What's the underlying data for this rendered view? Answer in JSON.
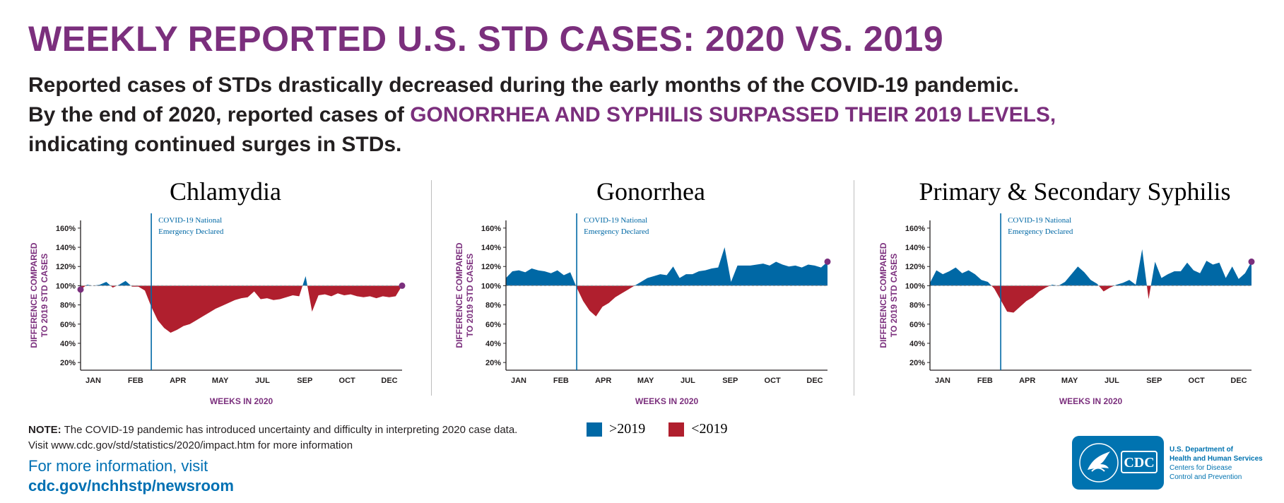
{
  "header": {
    "title": "WEEKLY REPORTED U.S. STD CASES: 2020 VS. 2019",
    "line1": "Reported cases of STDs drastically decreased during the early months of the COVID-19 pandemic.",
    "line2_pre": "By the end of 2020, reported cases of ",
    "line2_hl": "GONORRHEA AND SYPHILIS SURPASSED THEIR 2019 LEVELS,",
    "line3": "indicating continued surges in STDs."
  },
  "colors": {
    "above": "#0068a5",
    "below": "#b01f2e",
    "purple": "#7b2f7d",
    "annotation": "#0068a5"
  },
  "chart_data": [
    {
      "type": "area",
      "title": "Chlamydia",
      "ylabel": "DIFFERENCE COMPARED TO 2019 STD CASES",
      "xlabel": "WEEKS IN 2020",
      "x_ticks": [
        "JAN",
        "FEB",
        "APR",
        "MAY",
        "JUL",
        "SEP",
        "OCT",
        "DEC"
      ],
      "y_ticks": [
        "160%",
        "140%",
        "120%",
        "100%",
        "80%",
        "60%",
        "40%",
        "20%"
      ],
      "ylim": [
        12,
        168
      ],
      "baseline": 100,
      "annotation": {
        "week": 11,
        "text": [
          "COVID-19 National",
          "Emergency Declared"
        ]
      },
      "values": [
        96,
        101,
        100,
        101,
        104,
        98,
        101,
        105,
        99,
        99,
        95,
        78,
        64,
        56,
        51,
        54,
        58,
        60,
        64,
        68,
        72,
        76,
        79,
        82,
        85,
        87,
        88,
        94,
        86,
        87,
        85,
        86,
        88,
        90,
        89,
        110,
        73,
        90,
        91,
        89,
        92,
        90,
        91,
        89,
        88,
        89,
        87,
        89,
        88,
        89,
        100
      ]
    },
    {
      "type": "area",
      "title": "Gonorrhea",
      "ylabel": "DIFFERENCE COMPARED TO 2019 STD CASES",
      "xlabel": "WEEKS IN 2020",
      "x_ticks": [
        "JAN",
        "FEB",
        "APR",
        "MAY",
        "JUL",
        "SEP",
        "OCT",
        "DEC"
      ],
      "y_ticks": [
        "160%",
        "140%",
        "120%",
        "100%",
        "80%",
        "60%",
        "40%",
        "20%"
      ],
      "ylim": [
        12,
        168
      ],
      "baseline": 100,
      "annotation": {
        "week": 11,
        "text": [
          "COVID-19 National",
          "Emergency Declared"
        ]
      },
      "values": [
        108,
        115,
        116,
        114,
        118,
        116,
        115,
        113,
        116,
        111,
        114,
        98,
        84,
        74,
        68,
        78,
        82,
        88,
        92,
        96,
        100,
        104,
        108,
        110,
        112,
        111,
        120,
        108,
        112,
        112,
        115,
        116,
        118,
        119,
        140,
        104,
        121,
        121,
        121,
        122,
        123,
        121,
        125,
        122,
        120,
        121,
        119,
        122,
        121,
        119,
        125
      ]
    },
    {
      "type": "area",
      "title": "Primary & Secondary Syphilis",
      "ylabel": "DIFFERENCE COMPARED TO 2019 STD CASES",
      "xlabel": "WEEKS IN 2020",
      "x_ticks": [
        "JAN",
        "FEB",
        "APR",
        "MAY",
        "JUL",
        "SEP",
        "OCT",
        "DEC"
      ],
      "y_ticks": [
        "160%",
        "140%",
        "120%",
        "100%",
        "80%",
        "60%",
        "40%",
        "20%"
      ],
      "ylim": [
        12,
        168
      ],
      "baseline": 100,
      "annotation": {
        "week": 11,
        "text": [
          "COVID-19 National",
          "Emergency Declared"
        ]
      },
      "values": [
        103,
        116,
        112,
        115,
        119,
        113,
        116,
        112,
        106,
        104,
        97,
        85,
        73,
        72,
        78,
        84,
        88,
        94,
        98,
        101,
        100,
        104,
        112,
        120,
        114,
        106,
        102,
        94,
        98,
        101,
        103,
        106,
        101,
        138,
        86,
        125,
        108,
        112,
        115,
        115,
        124,
        116,
        113,
        126,
        122,
        124,
        108,
        120,
        107,
        113,
        125
      ]
    }
  ],
  "legend": [
    {
      "label": ">2019",
      "color": "#0068a5"
    },
    {
      "label": "<2019",
      "color": "#b01f2e"
    }
  ],
  "note": {
    "label": "NOTE:",
    "text": "The COVID-19 pandemic has introduced uncertainty and difficulty in interpreting 2020 case data.",
    "text2": "Visit www.cdc.gov/std/statistics/2020/impact.htm for more information"
  },
  "more_info": {
    "line1": "For more information, visit",
    "url": "cdc.gov/nchhstp/newsroom"
  },
  "hhs": {
    "logo_text": "CDC",
    "line1": "U.S. Department of",
    "line2": "Health and Human Services",
    "line3": "Centers for Disease",
    "line4": "Control and Prevention"
  }
}
